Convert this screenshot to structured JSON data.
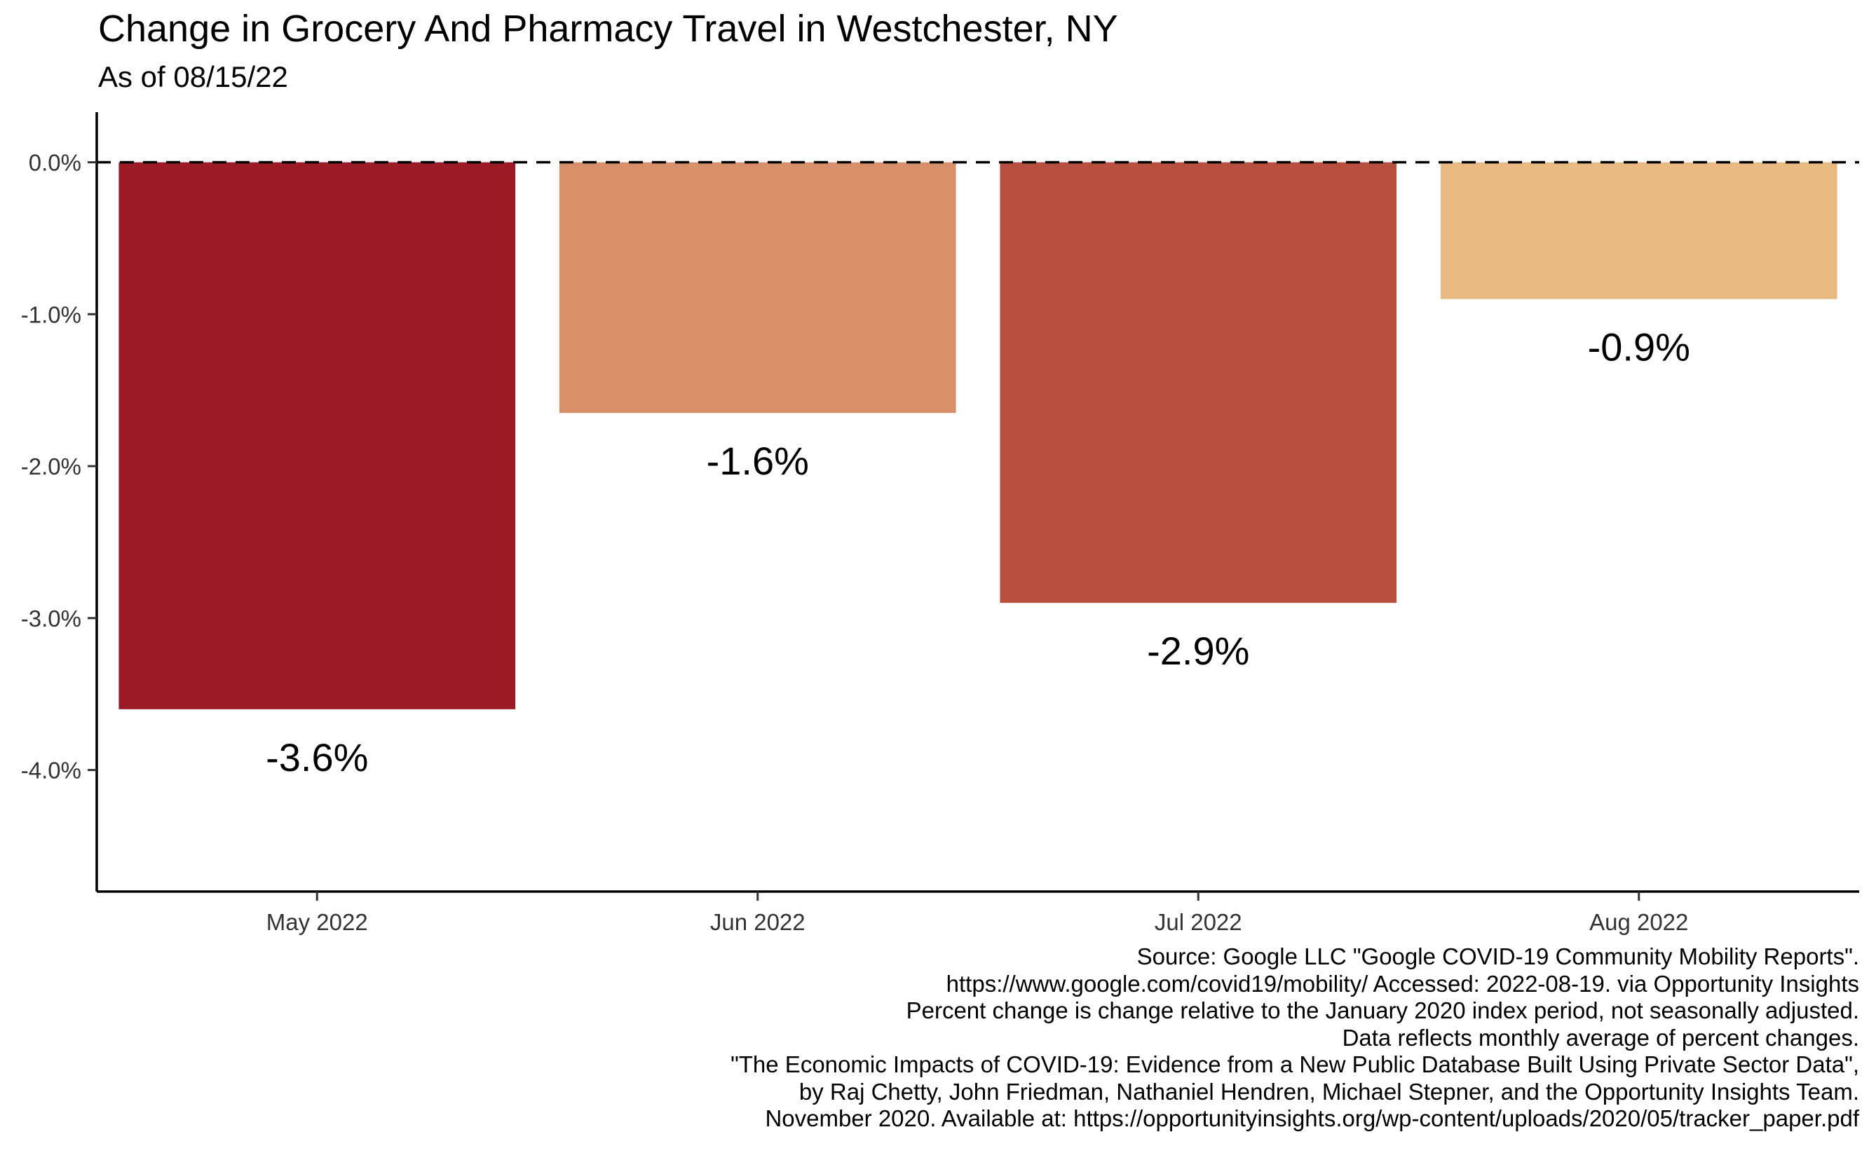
{
  "chart_data": {
    "type": "bar",
    "title": "Change in Grocery And Pharmacy Travel in Westchester, NY",
    "subtitle": "As of 08/15/22",
    "categories": [
      "May 2022",
      "Jun 2022",
      "Jul 2022",
      "Aug 2022"
    ],
    "values": [
      -3.6,
      -1.65,
      -2.9,
      -0.9
    ],
    "value_labels": [
      "-3.6%",
      "-1.6%",
      "-2.9%",
      "-0.9%"
    ],
    "bar_colors": [
      "#9b1b26",
      "#d7906a",
      "#b85040",
      "#e8b981"
    ],
    "ylim": [
      -4.8,
      0.33
    ],
    "yticks": [
      0,
      -1,
      -2,
      -3,
      -4
    ],
    "ytick_labels": [
      "0.0%",
      "-1.0%",
      "-2.0%",
      "-3.0%",
      "-4.0%"
    ],
    "reference_line": {
      "y": 0,
      "style": "dashed"
    },
    "xlabel": "",
    "ylabel": "",
    "grid": false,
    "legend": "none"
  },
  "caption_lines": [
    "Source: Google LLC \"Google COVID-19 Community Mobility Reports\".",
    "https://www.google.com/covid19/mobility/ Accessed: 2022-08-19. via Opportunity Insights",
    "Percent change is change relative to the January 2020 index period, not seasonally adjusted.",
    "Data reflects monthly average of percent changes.",
    "\"The Economic Impacts of COVID-19: Evidence from a New Public Database Built Using Private Sector Data\",",
    "by Raj Chetty, John Friedman, Nathaniel Hendren, Michael Stepner, and the Opportunity Insights Team.",
    "November 2020. Available at: https://opportunityinsights.org/wp-content/uploads/2020/05/tracker_paper.pdf"
  ]
}
